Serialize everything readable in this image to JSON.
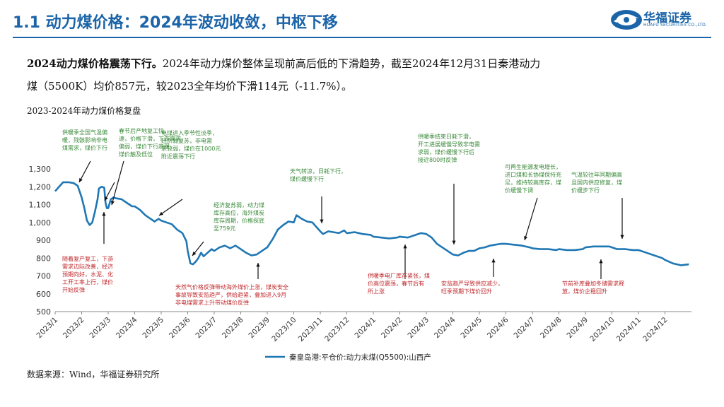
{
  "header": {
    "title": "1.1 动力煤价格：2024年波动收敛，中枢下移",
    "logo_text": "华福证券",
    "logo_sub": "HUAFU SECURITIES CO.,LTD."
  },
  "intro": {
    "bold": "2024动力煤价格震荡下行。",
    "line1_rest": "2024年动力煤价整体呈现前高后低的下滑趋势，截至2024年12月31日秦港动力",
    "line2": "煤（5500K）均价857元，较2023全年均价下滑114元（-11.7%）。"
  },
  "chart_subtitle": "2023-2024年动力煤价格复盘",
  "source": "数据来源：Wind，华福证券研究所",
  "chart_data": {
    "type": "line",
    "ylim": [
      500,
      1300
    ],
    "yticks": [
      "500",
      "600",
      "700",
      "800",
      "900",
      "1,000",
      "1,100",
      "1,200",
      "1,300"
    ],
    "ytick_values": [
      500,
      600,
      700,
      800,
      900,
      1000,
      1100,
      1200,
      1300
    ],
    "grid": false,
    "legend_position": "bottom",
    "x_labels": [
      "2023/1",
      "2023/2",
      "2023/3",
      "2023/4",
      "2023/5",
      "2023/6",
      "2023/7",
      "2023/8",
      "2023/9",
      "2023/10",
      "2023/11",
      "2023/12",
      "2024/1",
      "2024/2",
      "2024/3",
      "2024/4",
      "2024/5",
      "2024/6",
      "2024/7",
      "2024/8",
      "2024/9",
      "2024/10",
      "2024/11",
      "2024/12"
    ],
    "series": [
      {
        "name": "秦皇岛港:平仓价:动力末煤(Q5500):山西产",
        "color": "#1f77b4",
        "points": [
          [
            "2023/1",
            1175
          ],
          [
            "2023/1.15",
            1200
          ],
          [
            "2023/1.3",
            1225
          ],
          [
            "2023/1.5",
            1225
          ],
          [
            "2023/1.7",
            1220
          ],
          [
            "2023/1.85",
            1205
          ],
          [
            "2023/2",
            1140
          ],
          [
            "2023/2.1",
            1080
          ],
          [
            "2023/2.2",
            1010
          ],
          [
            "2023/2.3",
            985
          ],
          [
            "2023/2.4",
            1000
          ],
          [
            "2023/2.5",
            1060
          ],
          [
            "2023/2.6",
            1130
          ],
          [
            "2023/2.65",
            1190
          ],
          [
            "2023/2.75",
            1200
          ],
          [
            "2023/2.85",
            1195
          ],
          [
            "2023/2.9",
            1110
          ],
          [
            "2023/2.95",
            1080
          ],
          [
            "2023/3",
            1080
          ],
          [
            "2023/3.1",
            1130
          ],
          [
            "2023/3.2",
            1140
          ],
          [
            "2023/3.3",
            1135
          ],
          [
            "2023/3.5",
            1130
          ],
          [
            "2023/3.7",
            1110
          ],
          [
            "2023/3.9",
            1090
          ],
          [
            "2023/4",
            1090
          ],
          [
            "2023/4.2",
            1070
          ],
          [
            "2023/4.4",
            1040
          ],
          [
            "2023/4.6",
            1020
          ],
          [
            "2023/4.75",
            1005
          ],
          [
            "2023/4.9",
            1020
          ],
          [
            "2023/5",
            1010
          ],
          [
            "2023/5.2",
            1000
          ],
          [
            "2023/5.4",
            990
          ],
          [
            "2023/5.6",
            960
          ],
          [
            "2023/5.8",
            940
          ],
          [
            "2023/5.95",
            895
          ],
          [
            "2023/6",
            840
          ],
          [
            "2023/6.1",
            770
          ],
          [
            "2023/6.2",
            765
          ],
          [
            "2023/6.3",
            780
          ],
          [
            "2023/6.4",
            800
          ],
          [
            "2023/6.5",
            830
          ],
          [
            "2023/6.6",
            810
          ],
          [
            "2023/6.75",
            830
          ],
          [
            "2023/6.9",
            850
          ],
          [
            "2023/7",
            840
          ],
          [
            "2023/7.2",
            860
          ],
          [
            "2023/7.4",
            870
          ],
          [
            "2023/7.6",
            855
          ],
          [
            "2023/7.8",
            870
          ],
          [
            "2023/8",
            850
          ],
          [
            "2023/8.2",
            830
          ],
          [
            "2023/8.4",
            815
          ],
          [
            "2023/8.6",
            820
          ],
          [
            "2023/8.8",
            840
          ],
          [
            "2023/9",
            860
          ],
          [
            "2023/9.2",
            905
          ],
          [
            "2023/9.4",
            960
          ],
          [
            "2023/9.6",
            985
          ],
          [
            "2023/9.8",
            1005
          ],
          [
            "2023/10",
            1000
          ],
          [
            "2023/10.1",
            1040
          ],
          [
            "2023/10.3",
            1020
          ],
          [
            "2023/10.5",
            1005
          ],
          [
            "2023/10.7",
            1000
          ],
          [
            "2023/10.85",
            975
          ],
          [
            "2023/11",
            950
          ],
          [
            "2023/11.1",
            935
          ],
          [
            "2023/11.3",
            950
          ],
          [
            "2023/11.5",
            945
          ],
          [
            "2023/11.7",
            940
          ],
          [
            "2023/11.9",
            955
          ],
          [
            "2023/12",
            940
          ],
          [
            "2023/12.3",
            945
          ],
          [
            "2023/12.6",
            935
          ],
          [
            "2023/12.9",
            930
          ],
          [
            "2024/1",
            920
          ],
          [
            "2024/1.3",
            915
          ],
          [
            "2024/1.6",
            910
          ],
          [
            "2024/1.9",
            915
          ],
          [
            "2024/2",
            920
          ],
          [
            "2024/2.3",
            915
          ],
          [
            "2024/2.6",
            930
          ],
          [
            "2024/2.8",
            940
          ],
          [
            "2024/3",
            935
          ],
          [
            "2024/3.2",
            915
          ],
          [
            "2024/3.4",
            880
          ],
          [
            "2024/3.6",
            860
          ],
          [
            "2024/3.8",
            840
          ],
          [
            "2024/4",
            820
          ],
          [
            "2024/4.2",
            815
          ],
          [
            "2024/4.4",
            830
          ],
          [
            "2024/4.6",
            840
          ],
          [
            "2024/4.8",
            840
          ],
          [
            "2024/5",
            855
          ],
          [
            "2024/5.2",
            860
          ],
          [
            "2024/5.4",
            870
          ],
          [
            "2024/5.6",
            875
          ],
          [
            "2024/5.8",
            880
          ],
          [
            "2024/6",
            880
          ],
          [
            "2024/6.3",
            875
          ],
          [
            "2024/6.6",
            870
          ],
          [
            "2024/6.9",
            860
          ],
          [
            "2024/7",
            855
          ],
          [
            "2024/7.3",
            850
          ],
          [
            "2024/7.6",
            850
          ],
          [
            "2024/7.9",
            845
          ],
          [
            "2024/8",
            850
          ],
          [
            "2024/8.3",
            845
          ],
          [
            "2024/8.6",
            845
          ],
          [
            "2024/8.9",
            850
          ],
          [
            "2024/9",
            860
          ],
          [
            "2024/9.3",
            865
          ],
          [
            "2024/9.6",
            865
          ],
          [
            "2024/9.9",
            865
          ],
          [
            "2024/10",
            860
          ],
          [
            "2024/10.2",
            850
          ],
          [
            "2024/10.5",
            850
          ],
          [
            "2024/10.8",
            845
          ],
          [
            "2024/11",
            845
          ],
          [
            "2024/11.3",
            830
          ],
          [
            "2024/11.6",
            815
          ],
          [
            "2024/11.9",
            800
          ],
          [
            "2024/12",
            790
          ],
          [
            "2024/12.3",
            770
          ],
          [
            "2024/12.6",
            760
          ],
          [
            "2024/12.9",
            765
          ]
        ]
      }
    ]
  },
  "annotations": {
    "green": [
      {
        "key": "a1",
        "lines": [
          "供暖季全国气温偏",
          "暖，残骸影响非电",
          "煤需求，煤价下行"
        ]
      },
      {
        "key": "a2",
        "lines": [
          "春节后产地复工快",
          "速，价格下滑，下游需求",
          "偏弱，煤价下行趋缓，",
          "煤价触及低位"
        ]
      },
      {
        "key": "a3",
        "lines": [
          "电煤进入季节性淡季，",
          "经济弱复苏，非电需",
          "求较弱，煤价在1000元",
          "附近震荡下行"
        ]
      },
      {
        "key": "a4",
        "lines": [
          "经济复苏弱，动力煤",
          "库存高位，海外煤炭",
          "库存周期，价格探底",
          "至759元"
        ]
      },
      {
        "key": "a5",
        "lines": [
          "天气转凉，日耗下行，",
          "煤价缓慢下行"
        ]
      },
      {
        "key": "a6",
        "lines": [
          "供暖季结束日耗下滑，",
          "开工进展缓慢导致非电需",
          "求弱，煤价缓慢下行后",
          "接近800时反弹"
        ]
      },
      {
        "key": "a7",
        "lines": [
          "可再生能源发电增长，",
          "进口煤和长协煤保持充",
          "足，维持较高库存，煤",
          "价缓慢下调"
        ]
      },
      {
        "key": "a8",
        "lines": [
          "气温较往年同期偏高",
          "且国内供应修复，煤",
          "价缓步下行"
        ]
      }
    ],
    "red": [
      {
        "key": "r1",
        "lines": [
          "随着复产复工，下游",
          "需求边际改善，经济",
          "预期向好，水泥、化",
          "工开工率上行，煤价",
          "开始反弹"
        ]
      },
      {
        "key": "r2",
        "lines": [
          "天然气价格反弹带动海外煤价上涨，煤炭安全",
          "事故导致安监趋严，供给趋紧，叠加进入9月",
          "非电煤需求上升带动煤价反弹"
        ]
      },
      {
        "key": "r3",
        "lines": [
          "供暖季电厂库存紧张，煤",
          "价高位震荡，春节后有",
          "所上涨"
        ]
      },
      {
        "key": "r4",
        "lines": [
          "安监趋严导致供应减少，",
          "旺季预期下煤价回升"
        ]
      },
      {
        "key": "r5",
        "lines": [
          "节前补库叠加冬储需求释",
          "放，煤价企稳回升"
        ]
      }
    ]
  }
}
